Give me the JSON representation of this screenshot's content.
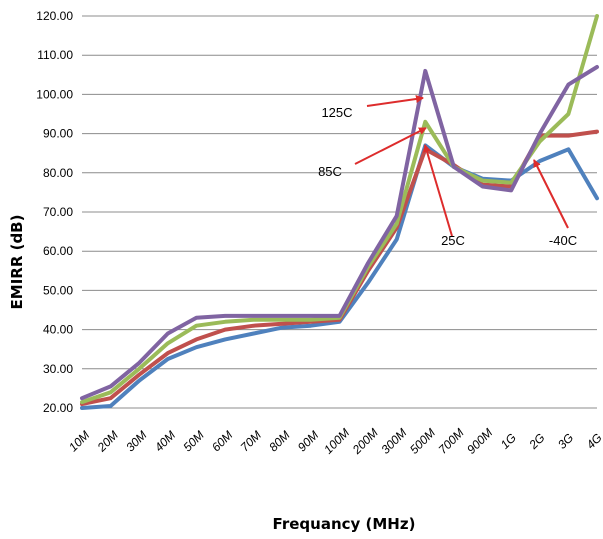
{
  "chart_data": {
    "type": "line",
    "xlabel": "Frequancy (MHz)",
    "ylabel": "EMIRR (dB)",
    "ylim": [
      20,
      120
    ],
    "yticks": [
      "20.00",
      "30.00",
      "40.00",
      "50.00",
      "60.00",
      "70.00",
      "80.00",
      "90.00",
      "100.00",
      "110.00",
      "120.00"
    ],
    "grid": "horizontal",
    "categories": [
      "10M",
      "20M",
      "30M",
      "40M",
      "50M",
      "60M",
      "70M",
      "80M",
      "90M",
      "100M",
      "200M",
      "300M",
      "500M",
      "700M",
      "900M",
      "1G",
      "2G",
      "3G",
      "4G"
    ],
    "series": [
      {
        "name": "-40C",
        "color": "#4f81bd",
        "values": [
          20,
          20.5,
          27,
          32.5,
          35.5,
          37.5,
          39,
          40.5,
          41,
          42,
          52,
          63,
          87,
          81.5,
          78.5,
          78,
          83,
          86,
          73.5
        ]
      },
      {
        "name": "25C",
        "color": "#c0504d",
        "values": [
          21,
          22.5,
          28.5,
          34,
          37.5,
          40,
          41,
          41.5,
          42,
          42.5,
          55,
          66,
          86,
          82,
          77,
          76.5,
          89.5,
          89.5,
          90.5
        ]
      },
      {
        "name": "85C",
        "color": "#9bbb59",
        "values": [
          21.5,
          24,
          30,
          36.5,
          41,
          42,
          42.5,
          42.5,
          42.5,
          43,
          56,
          67,
          93,
          81.5,
          78,
          77.5,
          88,
          95,
          120
        ]
      },
      {
        "name": "125C",
        "color": "#8064a2",
        "values": [
          22.5,
          25.5,
          31.5,
          39,
          43,
          43.5,
          43.5,
          43.5,
          43.5,
          43.5,
          57,
          69,
          106,
          81.5,
          76.5,
          75.5,
          90,
          102.5,
          107
        ]
      }
    ],
    "annotations": [
      {
        "label": "125C",
        "series": "125C"
      },
      {
        "label": "85C",
        "series": "85C"
      },
      {
        "label": "25C",
        "series": "25C"
      },
      {
        "label": "-40C",
        "series": "-40C"
      }
    ],
    "arrow_color": "#dd2c2c"
  }
}
